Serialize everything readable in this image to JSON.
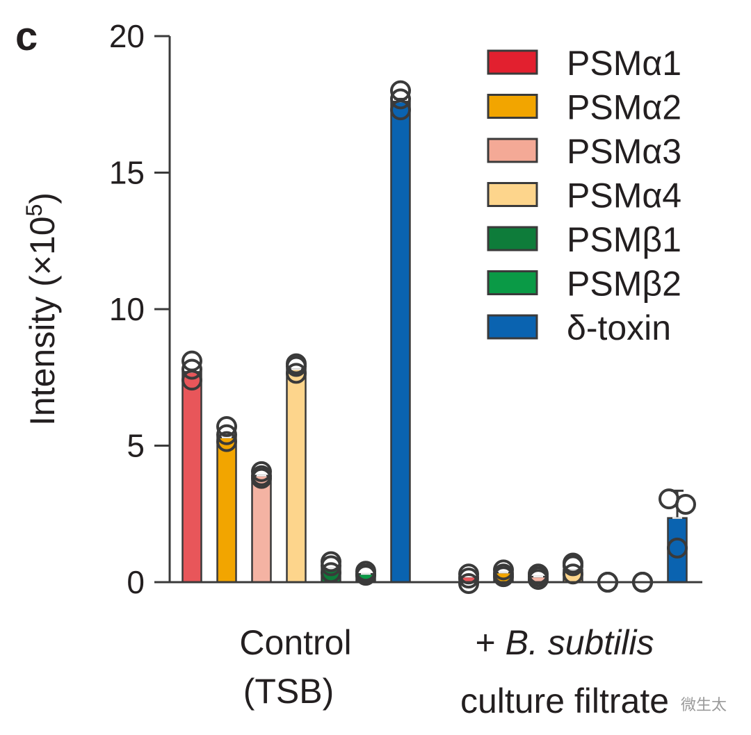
{
  "panel_label": "c",
  "watermark": "微生太",
  "chart_data": {
    "type": "bar",
    "title": "",
    "xlabel": "",
    "ylabel": "Intensity (×10",
    "ylabel_superscript": "5",
    "ylabel_close": ")",
    "ylim": [
      0,
      20
    ],
    "yticks": [
      "0",
      "5",
      "10",
      "15",
      "20"
    ],
    "groups": [
      {
        "line1": "Control",
        "line2": "(TSB)",
        "italic_part": ""
      },
      {
        "line1_prefix": "+ ",
        "line1_italic": "B. subtilis",
        "line2": "culture filtrate"
      }
    ],
    "series": [
      {
        "name": "PSMα1",
        "color": "#e8565a",
        "legend_color": "#e2202f",
        "values": [
          7.7,
          0.2
        ],
        "points": [
          [
            8.1,
            7.8,
            7.4
          ],
          [
            0.3,
            0.15,
            -0.05
          ]
        ]
      },
      {
        "name": "PSMα2",
        "color": "#f2a500",
        "legend_color": "#f2a500",
        "values": [
          5.3,
          0.35
        ],
        "points": [
          [
            5.7,
            5.4,
            5.15
          ],
          [
            0.45,
            0.3,
            0.2
          ]
        ]
      },
      {
        "name": "PSMα3",
        "color": "#f4b3a3",
        "legend_color": "#f4a996",
        "values": [
          3.9,
          0.2
        ],
        "points": [
          [
            4.05,
            3.9,
            3.8
          ],
          [
            0.3,
            0.2,
            0.1
          ]
        ]
      },
      {
        "name": "PSMα4",
        "color": "#fdd58c",
        "legend_color": "#fdd58c",
        "values": [
          7.8,
          0.45
        ],
        "points": [
          [
            8.0,
            7.9,
            7.65
          ],
          [
            0.7,
            0.6,
            0.3
          ]
        ]
      },
      {
        "name": "PSMβ1",
        "color": "#0e7c3a",
        "legend_color": "#0e7c3a",
        "values": [
          0.5,
          0.0
        ],
        "points": [
          [
            0.75,
            0.6,
            0.35
          ],
          [
            0.0,
            0.0,
            0.0
          ]
        ]
      },
      {
        "name": "PSMβ2",
        "color": "#0a9a46",
        "legend_color": "#0a9a46",
        "values": [
          0.3,
          0.0
        ],
        "points": [
          [
            0.4,
            0.3,
            0.25
          ],
          [
            0.0,
            0.0,
            0.0
          ]
        ]
      },
      {
        "name": "δ-toxin",
        "color": "#0a63b0",
        "legend_color": "#0a63b0",
        "values": [
          17.6,
          2.35
        ],
        "points": [
          [
            18.0,
            17.7,
            17.3
          ],
          [
            3.05,
            2.85,
            1.25
          ]
        ],
        "error": [
          0.1,
          1.0
        ]
      }
    ]
  }
}
